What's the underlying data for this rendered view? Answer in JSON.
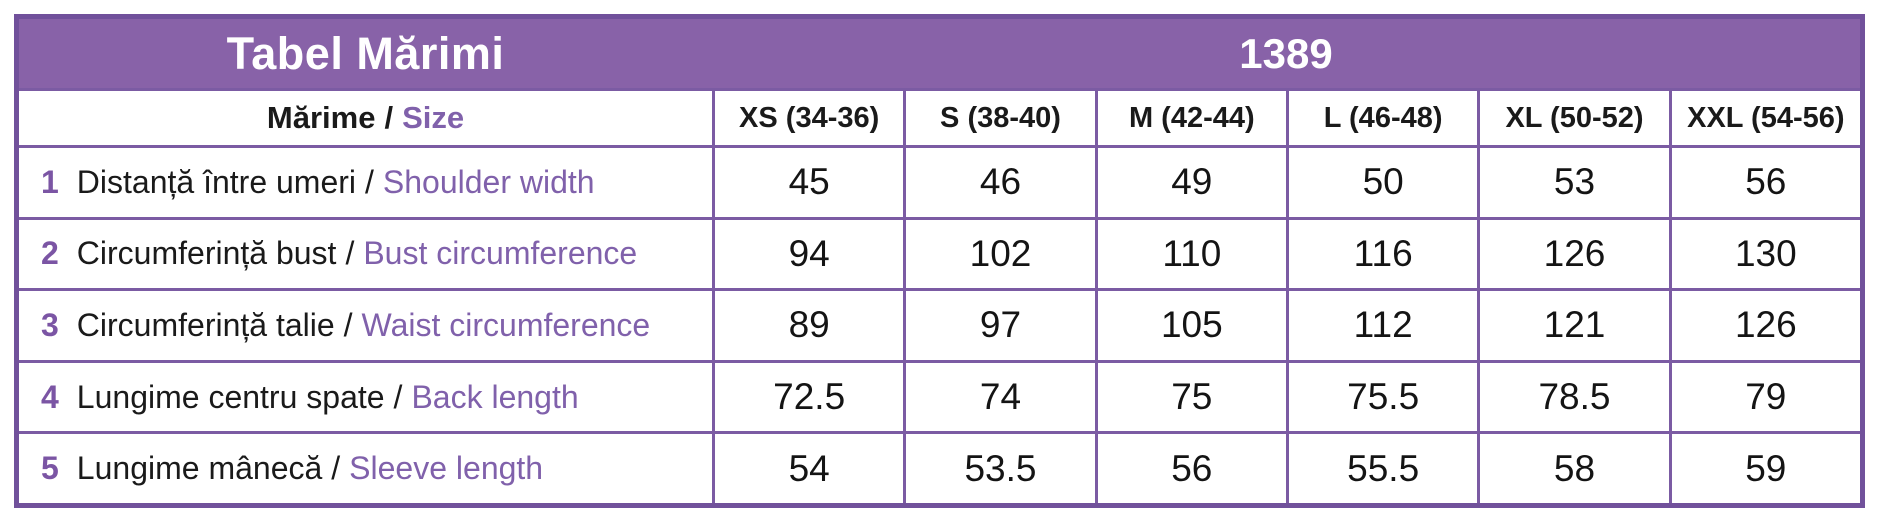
{
  "header": {
    "title": "Tabel Mărimi",
    "code": "1389"
  },
  "table": {
    "sep": "/",
    "corner": {
      "ro": "Mărime",
      "en": "Size"
    },
    "columns": [
      "XS (34-36)",
      "S (38-40)",
      "M (42-44)",
      "L (46-48)",
      "XL (50-52)",
      "XXL (54-56)"
    ],
    "rows": [
      {
        "num": "1",
        "ro": "Distanță între umeri",
        "en": "Shoulder width",
        "values": [
          "45",
          "46",
          "49",
          "50",
          "53",
          "56"
        ]
      },
      {
        "num": "2",
        "ro": "Circumferință bust",
        "en": "Bust circumference",
        "values": [
          "94",
          "102",
          "110",
          "116",
          "126",
          "130"
        ]
      },
      {
        "num": "3",
        "ro": "Circumferință talie",
        "en": "Waist circumference",
        "values": [
          "89",
          "97",
          "105",
          "112",
          "121",
          "126"
        ]
      },
      {
        "num": "4",
        "ro": "Lungime centru spate",
        "en": "Back length",
        "values": [
          "72.5",
          "74",
          "75",
          "75.5",
          "78.5",
          "79"
        ]
      },
      {
        "num": "5",
        "ro": "Lungime mânecă",
        "en": "Sleeve length",
        "values": [
          "54",
          "53.5",
          "56",
          "55.5",
          "58",
          "59"
        ]
      }
    ]
  },
  "colors": {
    "band_purple": "#8862a8",
    "line_purple": "#7b5ba3",
    "accent_purple": "#8061ab",
    "text_black": "#1a1a1a"
  },
  "chart_data": {
    "type": "table",
    "title": "Tabel Mărimi",
    "code": "1389",
    "columns": [
      "XS (34-36)",
      "S (38-40)",
      "M (42-44)",
      "L (46-48)",
      "XL (50-52)",
      "XXL (54-56)"
    ],
    "rows": [
      {
        "label": "Distanță între umeri / Shoulder width",
        "values": [
          45,
          46,
          49,
          50,
          53,
          56
        ]
      },
      {
        "label": "Circumferință bust / Bust circumference",
        "values": [
          94,
          102,
          110,
          116,
          126,
          130
        ]
      },
      {
        "label": "Circumferință talie / Waist circumference",
        "values": [
          89,
          97,
          105,
          112,
          121,
          126
        ]
      },
      {
        "label": "Lungime centru spate / Back length",
        "values": [
          72.5,
          74,
          75,
          75.5,
          78.5,
          79
        ]
      },
      {
        "label": "Lungime mânecă / Sleeve length",
        "values": [
          54,
          53.5,
          56,
          55.5,
          58,
          59
        ]
      }
    ]
  }
}
